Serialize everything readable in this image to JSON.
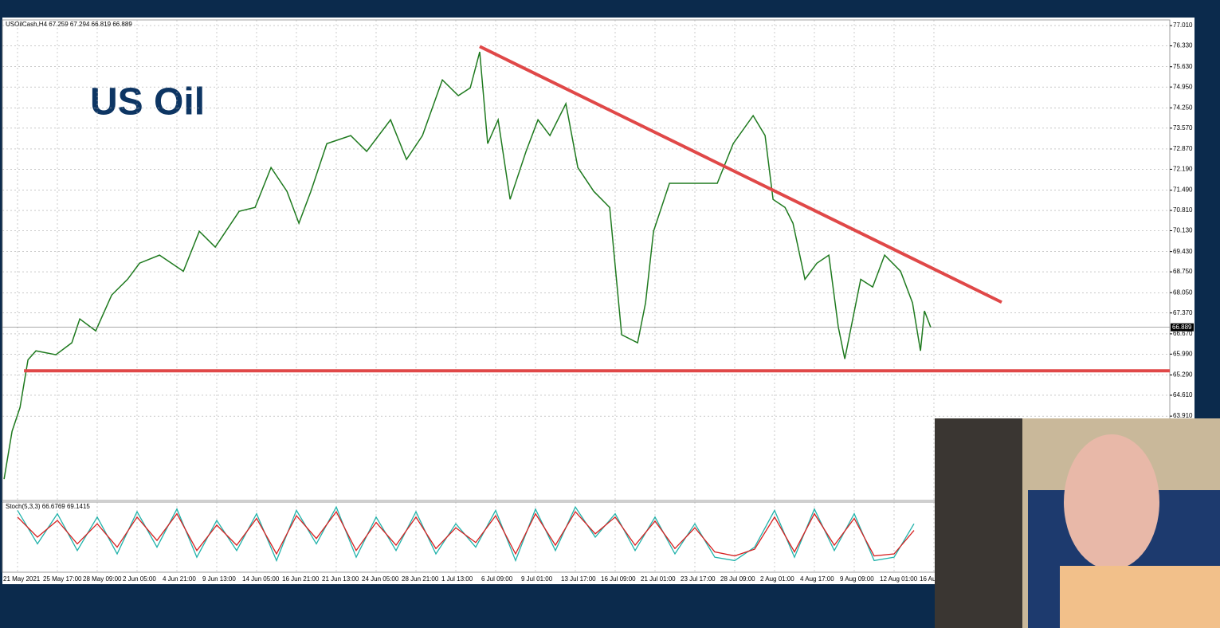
{
  "chart_data": {
    "type": "line",
    "header": "USOilCash,H4  67.259 67.294 66.819 66.889",
    "title": "US Oil",
    "xlim": [
      -6.08,
      462.72
    ],
    "ylim": [
      61.08,
      77.2
    ],
    "xticks": [
      {
        "value": 0,
        "label": "21 May 2021"
      },
      {
        "value": 16,
        "label": "25 May 17:00"
      },
      {
        "value": 32,
        "label": "28 May 09:00"
      },
      {
        "value": 48,
        "label": "2 Jun 05:00"
      },
      {
        "value": 64,
        "label": "4 Jun 21:00"
      },
      {
        "value": 80,
        "label": "9 Jun 13:00"
      },
      {
        "value": 96,
        "label": "14 Jun 05:00"
      },
      {
        "value": 112,
        "label": "16 Jun 21:00"
      },
      {
        "value": 128,
        "label": "21 Jun 13:00"
      },
      {
        "value": 144,
        "label": "24 Jun 05:00"
      },
      {
        "value": 160,
        "label": "28 Jun 21:00"
      },
      {
        "value": 176,
        "label": "1 Jul 13:00"
      },
      {
        "value": 192,
        "label": "6 Jul 09:00"
      },
      {
        "value": 208,
        "label": "9 Jul 01:00"
      },
      {
        "value": 224,
        "label": "13 Jul 17:00"
      },
      {
        "value": 240,
        "label": "16 Jul 09:00"
      },
      {
        "value": 256,
        "label": "21 Jul 01:00"
      },
      {
        "value": 272,
        "label": "23 Jul 17:00"
      },
      {
        "value": 288,
        "label": "28 Jul 09:00"
      },
      {
        "value": 304,
        "label": "2 Aug 01:00"
      },
      {
        "value": 320,
        "label": "4 Aug 17:00"
      },
      {
        "value": 336,
        "label": "9 Aug 09:00"
      },
      {
        "value": 352,
        "label": "12 Aug 01:00"
      },
      {
        "value": 368,
        "label": "16 Au"
      }
    ],
    "yticks": [
      {
        "value": 77.01,
        "label": "77.010"
      },
      {
        "value": 76.33,
        "label": "76.330"
      },
      {
        "value": 75.63,
        "label": "75.630"
      },
      {
        "value": 74.95,
        "label": "74.950"
      },
      {
        "value": 74.25,
        "label": "74.250"
      },
      {
        "value": 73.57,
        "label": "73.570"
      },
      {
        "value": 72.87,
        "label": "72.870"
      },
      {
        "value": 72.19,
        "label": "72.190"
      },
      {
        "value": 71.49,
        "label": "71.490"
      },
      {
        "value": 70.81,
        "label": "70.810"
      },
      {
        "value": 70.13,
        "label": "70.130"
      },
      {
        "value": 69.43,
        "label": "69.430"
      },
      {
        "value": 68.75,
        "label": "68.750"
      },
      {
        "value": 68.05,
        "label": "68.050"
      },
      {
        "value": 67.37,
        "label": "67.370"
      },
      {
        "value": 66.67,
        "label": "66.670"
      },
      {
        "value": 65.99,
        "label": "65.990"
      },
      {
        "value": 65.29,
        "label": "65.290"
      },
      {
        "value": 64.61,
        "label": "64.610"
      },
      {
        "value": 63.91,
        "label": "63.910"
      }
    ],
    "grid": true,
    "last_price": 66.889,
    "series": [
      {
        "color": "#1f7a1f",
        "x": [
          -5.4,
          -2.2,
          1,
          4.2,
          7.4,
          15.4,
          21.8,
          25,
          31.4,
          37.8,
          44.2,
          49,
          57,
          66.6,
          73,
          79.4,
          89,
          95.4,
          101.8,
          108.2,
          113,
          117.8,
          124.2,
          133.8,
          140.2,
          149.8,
          156.2,
          162.6,
          170.6,
          177,
          181.8,
          185.6,
          188.8,
          193,
          197.8,
          204.2,
          209,
          213.8,
          220.2,
          225,
          231.4,
          237.8,
          242.6,
          249,
          252.2,
          255.4,
          261.8,
          271.4,
          281,
          287.4,
          295.4,
          300.2,
          303.4,
          308.2,
          311.4,
          316.2,
          321,
          325.8,
          329.6,
          332.2,
          338.6,
          343.4,
          348.2,
          354.6,
          359.4,
          362.6,
          364.2,
          366.7
        ],
        "values": [
          61.8,
          63.4,
          64.2,
          65.8,
          66.1,
          65.97,
          66.37,
          67.17,
          66.77,
          67.97,
          68.5,
          69.04,
          69.31,
          68.77,
          70.11,
          69.58,
          70.78,
          70.91,
          72.25,
          71.45,
          70.38,
          71.45,
          73.05,
          73.32,
          72.79,
          73.85,
          72.52,
          73.32,
          75.19,
          74.66,
          74.92,
          76.13,
          73.05,
          73.85,
          71.18,
          72.79,
          73.85,
          73.32,
          74.39,
          72.25,
          71.45,
          70.91,
          66.64,
          66.37,
          67.71,
          70.11,
          71.72,
          71.72,
          71.72,
          73.05,
          73.99,
          73.32,
          71.18,
          70.91,
          70.38,
          68.5,
          69.04,
          69.31,
          66.9,
          65.83,
          68.5,
          68.24,
          69.31,
          68.77,
          67.71,
          66.1,
          67.44,
          66.889
        ]
      }
    ],
    "trendlines": [
      {
        "color": "#e04848",
        "x": [
          185.6,
          395.2
        ],
        "y": [
          76.31,
          67.73
        ]
      },
      {
        "color": "#e04848",
        "x": [
          2.6,
          462.7
        ],
        "y": [
          65.43,
          65.43
        ]
      }
    ],
    "stochastic": {
      "title": "Stoch(5,3,3) 66.6769 69.1415",
      "ylim": [
        0,
        100
      ],
      "x": [
        0,
        8,
        16,
        24,
        32,
        40,
        48,
        56,
        64,
        72,
        80,
        88,
        96,
        104,
        112,
        120,
        128,
        136,
        144,
        152,
        160,
        168,
        176,
        184,
        192,
        200,
        208,
        216,
        224,
        232,
        240,
        248,
        256,
        264,
        272,
        280,
        288,
        296,
        304,
        312,
        320,
        328,
        336,
        344,
        352,
        360
      ],
      "series": [
        {
          "color": "#20b2aa",
          "values": [
            90,
            40,
            85,
            30,
            80,
            25,
            88,
            35,
            92,
            20,
            75,
            30,
            85,
            15,
            90,
            40,
            95,
            20,
            80,
            30,
            88,
            25,
            70,
            35,
            90,
            15,
            92,
            30,
            95,
            50,
            85,
            30,
            80,
            25,
            70,
            20,
            15,
            35,
            90,
            20,
            92,
            30,
            85,
            15,
            20,
            70
          ]
        },
        {
          "color": "#d62020",
          "values": [
            80,
            50,
            75,
            40,
            70,
            35,
            80,
            45,
            85,
            30,
            68,
            38,
            78,
            25,
            82,
            48,
            88,
            30,
            72,
            38,
            80,
            33,
            64,
            42,
            82,
            25,
            85,
            38,
            88,
            55,
            80,
            38,
            74,
            33,
            64,
            28,
            22,
            32,
            80,
            28,
            85,
            38,
            78,
            22,
            25,
            60
          ]
        }
      ]
    }
  }
}
